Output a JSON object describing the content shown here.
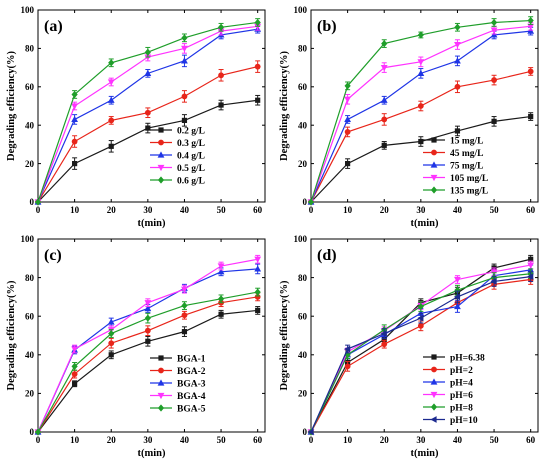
{
  "colors": {
    "black": "#1a1a1a",
    "red": "#e8251a",
    "blue": "#1f35e6",
    "magenta": "#ff33ff",
    "green": "#1f9e2a",
    "navy": "#1c2a8f"
  },
  "chart_data": [
    {
      "panel": "(a)",
      "type": "line",
      "xlabel": "t(min)",
      "ylabel": "Degrading efficiency(%)",
      "xlim": [
        0,
        62
      ],
      "ylim": [
        0,
        100
      ],
      "xticks": [
        0,
        10,
        20,
        30,
        40,
        50,
        60
      ],
      "yticks": [
        0,
        20,
        40,
        60,
        80,
        100
      ],
      "legend_position": "bottom-right",
      "x": [
        0,
        10,
        20,
        30,
        40,
        50,
        60
      ],
      "series": [
        {
          "name": "0.2 g/L",
          "color": "black",
          "marker": "square",
          "values": [
            0,
            20,
            29,
            38.5,
            42.5,
            50.5,
            53
          ],
          "err": [
            0,
            3,
            3,
            2.5,
            3,
            2.5,
            2.5
          ]
        },
        {
          "name": "0.3 g/L",
          "color": "red",
          "marker": "circle",
          "values": [
            0,
            31.5,
            42.5,
            46.5,
            55,
            66,
            70.5
          ],
          "err": [
            0,
            3,
            2,
            2.5,
            3,
            3,
            3
          ]
        },
        {
          "name": "0.4 g/L",
          "color": "blue",
          "marker": "triangle-up",
          "values": [
            0,
            43,
            53,
            67,
            73.5,
            87,
            90
          ],
          "err": [
            0,
            2.5,
            2,
            2,
            3,
            2,
            2
          ]
        },
        {
          "name": "0.5 g/L",
          "color": "magenta",
          "marker": "triangle-down",
          "values": [
            0,
            50,
            62.5,
            75.5,
            80,
            89,
            91.5
          ],
          "err": [
            0,
            2,
            2,
            2,
            2.5,
            2,
            2
          ]
        },
        {
          "name": "0.6 g/L",
          "color": "green",
          "marker": "diamond",
          "values": [
            0,
            56,
            72.5,
            78,
            85.5,
            91,
            93.5
          ],
          "err": [
            0,
            2,
            2,
            2.5,
            2,
            2,
            2
          ]
        }
      ]
    },
    {
      "panel": "(b)",
      "type": "line",
      "xlabel": "t(min)",
      "ylabel": "Degrading efficiency(%)",
      "xlim": [
        0,
        62
      ],
      "ylim": [
        0,
        100
      ],
      "xticks": [
        0,
        10,
        20,
        30,
        40,
        50,
        60
      ],
      "yticks": [
        0,
        20,
        40,
        60,
        80,
        100
      ],
      "legend_position": "bottom-right",
      "x": [
        0,
        10,
        20,
        30,
        40,
        50,
        60
      ],
      "series": [
        {
          "name": "15  mg/L",
          "color": "black",
          "marker": "square",
          "values": [
            0,
            20,
            29.5,
            31.5,
            37,
            42,
            44.5
          ],
          "err": [
            0,
            2.5,
            2,
            2.5,
            2.5,
            2.5,
            2
          ]
        },
        {
          "name": "45  mg/L",
          "color": "red",
          "marker": "circle",
          "values": [
            0,
            36.5,
            43,
            50,
            60,
            63.5,
            68
          ],
          "err": [
            0,
            2.5,
            3,
            2.5,
            3,
            2.5,
            2
          ]
        },
        {
          "name": "75  mg/L",
          "color": "blue",
          "marker": "triangle-up",
          "values": [
            0,
            43,
            53,
            67,
            73.5,
            87,
            89
          ],
          "err": [
            0,
            2,
            2,
            2.5,
            2.5,
            2,
            2
          ]
        },
        {
          "name": "105 mg/L",
          "color": "magenta",
          "marker": "triangle-down",
          "values": [
            0,
            53.5,
            70,
            73,
            82,
            89.5,
            91.5
          ],
          "err": [
            0,
            2.5,
            2.5,
            2.5,
            2.5,
            2,
            2
          ]
        },
        {
          "name": "135 mg/L",
          "color": "green",
          "marker": "diamond",
          "values": [
            0,
            60.5,
            82.5,
            87,
            91,
            93.5,
            94.5
          ],
          "err": [
            0,
            2,
            2,
            1.5,
            2,
            2,
            2
          ]
        }
      ]
    },
    {
      "panel": "(c)",
      "type": "line",
      "xlabel": "t(min)",
      "ylabel": "Degrading efficiency(%)",
      "xlim": [
        0,
        62
      ],
      "ylim": [
        0,
        100
      ],
      "xticks": [
        0,
        10,
        20,
        30,
        40,
        50,
        60
      ],
      "yticks": [
        0,
        20,
        40,
        60,
        80,
        100
      ],
      "legend_position": "bottom-right",
      "x": [
        0,
        10,
        20,
        30,
        40,
        50,
        60
      ],
      "series": [
        {
          "name": "BGA-1",
          "color": "black",
          "marker": "square",
          "values": [
            0,
            25,
            40,
            47,
            52,
            61,
            63
          ],
          "err": [
            0,
            1.5,
            2,
            2.5,
            2.5,
            2,
            2
          ]
        },
        {
          "name": "BGA-2",
          "color": "red",
          "marker": "circle",
          "values": [
            0,
            30,
            46,
            52.5,
            60.5,
            67,
            70
          ],
          "err": [
            0,
            2,
            2.5,
            2.5,
            2,
            2,
            2
          ]
        },
        {
          "name": "BGA-3",
          "color": "blue",
          "marker": "triangle-up",
          "values": [
            0,
            42.5,
            57,
            64,
            74.5,
            83,
            84.5
          ],
          "err": [
            0,
            2,
            2,
            2,
            2,
            2,
            2.5
          ]
        },
        {
          "name": "BGA-4",
          "color": "magenta",
          "marker": "triangle-down",
          "values": [
            0,
            43,
            53,
            67,
            74,
            86,
            89.5
          ],
          "err": [
            0,
            2,
            2,
            2,
            2,
            2,
            2
          ]
        },
        {
          "name": "BGA-5",
          "color": "green",
          "marker": "diamond",
          "values": [
            0,
            34,
            51,
            59,
            65.5,
            69,
            72.5
          ],
          "err": [
            0,
            2,
            2,
            2.5,
            2,
            2,
            2
          ]
        }
      ]
    },
    {
      "panel": "(d)",
      "type": "line",
      "xlabel": "t(min)",
      "ylabel": "Degrading efficiency(%)",
      "xlim": [
        0,
        62
      ],
      "ylim": [
        0,
        100
      ],
      "xticks": [
        0,
        10,
        20,
        30,
        40,
        50,
        60
      ],
      "yticks": [
        0,
        20,
        40,
        60,
        80,
        100
      ],
      "legend_position": "bottom-right",
      "x": [
        0,
        10,
        20,
        30,
        40,
        50,
        60
      ],
      "series": [
        {
          "name": "pH=6.38",
          "color": "black",
          "marker": "square",
          "values": [
            0,
            36,
            48,
            67,
            72,
            85,
            89.5
          ],
          "err": [
            0,
            2,
            2.5,
            2,
            3,
            2,
            2
          ]
        },
        {
          "name": "pH=2",
          "color": "red",
          "marker": "circle",
          "values": [
            0,
            34,
            45.5,
            55,
            67,
            76.5,
            79
          ],
          "err": [
            0,
            2.5,
            2,
            2.5,
            3,
            2.5,
            2.5
          ]
        },
        {
          "name": "pH=4",
          "color": "blue",
          "marker": "triangle-up",
          "values": [
            0,
            40,
            50.5,
            61.5,
            65,
            81,
            84
          ],
          "err": [
            0,
            2,
            2,
            2.5,
            3,
            2.5,
            2.5
          ]
        },
        {
          "name": "pH=6",
          "color": "magenta",
          "marker": "triangle-down",
          "values": [
            0,
            41.5,
            52.5,
            65.5,
            79,
            83,
            86.5
          ],
          "err": [
            0,
            2,
            2,
            2,
            2,
            2,
            2
          ]
        },
        {
          "name": "pH=8",
          "color": "green",
          "marker": "diamond",
          "values": [
            0,
            40,
            53,
            65,
            73.5,
            80,
            82
          ],
          "err": [
            0,
            2,
            2.5,
            2.5,
            2.5,
            2.5,
            2.5
          ]
        },
        {
          "name": "pH=10",
          "color": "navy",
          "marker": "triangle-left",
          "values": [
            0,
            43,
            51,
            59,
            70,
            78,
            80.5
          ],
          "err": [
            0,
            2,
            2.5,
            2.5,
            3,
            2.5,
            2.5
          ]
        }
      ]
    }
  ]
}
